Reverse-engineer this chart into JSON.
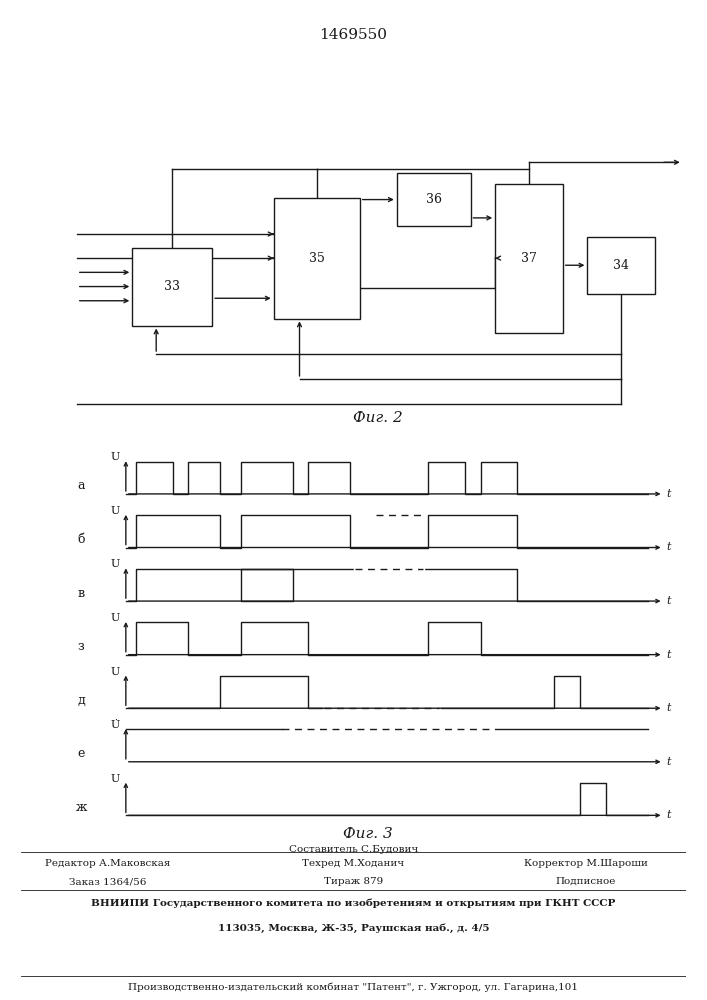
{
  "title": "1469550",
  "fig2_label": "Фиг. 2",
  "fig3_label": "Фиг. 3",
  "bg_color": "#ffffff",
  "line_color": "#1a1a1a",
  "row_labels": [
    "а",
    "б",
    "в",
    "з",
    "д",
    "е",
    "ж"
  ],
  "footer_editor": "Редактор А.Маковская",
  "footer_tehred": "Техред М.Ходанич",
  "footer_korr": "Корректор М.Шароши",
  "footer_sost": "Составитель С.Будович",
  "footer_zakaz": "Заказ 1364/56",
  "footer_tirazh": "Тираж 879",
  "footer_podp": "Подписное",
  "footer_vniip1": "ВНИИПИ Государственного комитета по изобретениям и открытиям при ГКНТ СССР",
  "footer_vniip2": "113035, Москва, Ж-35, Раушская наб., д. 4/5",
  "footer_prod": "Производственно-издательский комбинат \"Патент\", г. Ужгород, ул. Гагарина,101"
}
